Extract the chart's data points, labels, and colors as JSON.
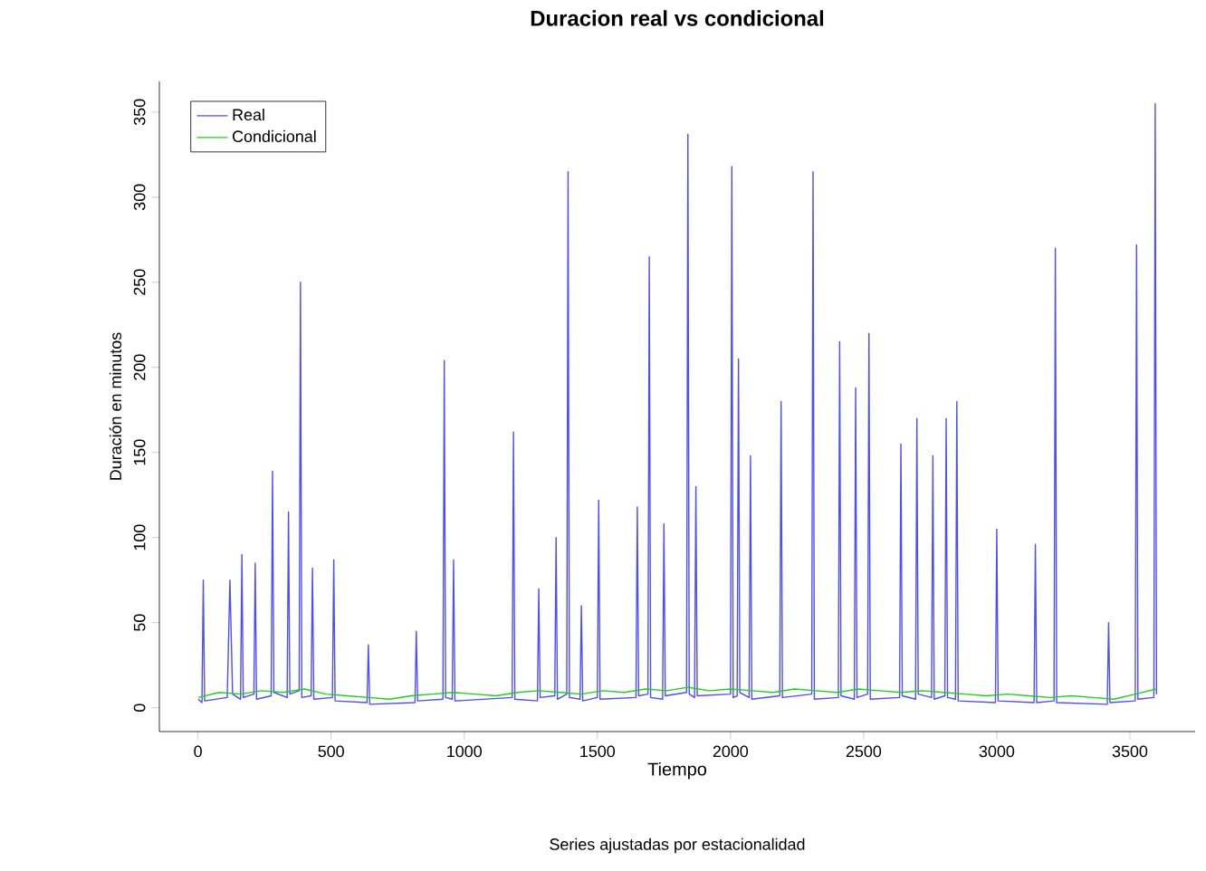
{
  "chart_data": {
    "type": "line",
    "title": "Duracion real vs condicional",
    "subtitle": "Series ajustadas por estacionalidad",
    "xlabel": "Tiempo",
    "ylabel": "Duración en minutos",
    "xlim": [
      -145,
      3745
    ],
    "ylim": [
      -14,
      368
    ],
    "xticks": [
      0,
      500,
      1000,
      1500,
      2000,
      2500,
      3000,
      3500
    ],
    "yticks": [
      0,
      50,
      100,
      150,
      200,
      250,
      300,
      350
    ],
    "legend": "top left",
    "grid": false,
    "series": [
      {
        "name": "Real",
        "color": "#4d4dff",
        "x": [
          1,
          15,
          20,
          25,
          110,
          120,
          130,
          160,
          165,
          170,
          210,
          215,
          220,
          275,
          280,
          285,
          335,
          340,
          345,
          380,
          385,
          390,
          425,
          430,
          435,
          505,
          510,
          515,
          635,
          640,
          645,
          815,
          820,
          825,
          920,
          925,
          930,
          955,
          960,
          965,
          1180,
          1185,
          1190,
          1275,
          1280,
          1285,
          1340,
          1345,
          1350,
          1385,
          1390,
          1395,
          1435,
          1440,
          1445,
          1500,
          1505,
          1510,
          1645,
          1650,
          1655,
          1690,
          1695,
          1700,
          1745,
          1750,
          1755,
          1835,
          1840,
          1845,
          1865,
          1870,
          1875,
          2000,
          2005,
          2010,
          2025,
          2030,
          2035,
          2070,
          2075,
          2080,
          2185,
          2190,
          2195,
          2305,
          2310,
          2315,
          2405,
          2410,
          2415,
          2465,
          2470,
          2475,
          2515,
          2520,
          2525,
          2635,
          2640,
          2645,
          2695,
          2700,
          2705,
          2755,
          2760,
          2765,
          2805,
          2810,
          2815,
          2845,
          2850,
          2855,
          2995,
          3000,
          3005,
          3140,
          3145,
          3150,
          3215,
          3220,
          3225,
          3415,
          3420,
          3425,
          3520,
          3525,
          3530,
          3590,
          3595,
          3600
        ],
        "values": [
          5,
          3,
          75,
          4,
          6,
          75,
          8,
          5,
          90,
          6,
          8,
          85,
          5,
          7,
          139,
          9,
          6,
          115,
          8,
          10,
          250,
          6,
          7,
          82,
          5,
          6,
          87,
          4,
          3,
          37,
          2,
          3,
          45,
          4,
          5,
          204,
          6,
          5,
          87,
          4,
          6,
          162,
          5,
          4,
          70,
          6,
          7,
          100,
          5,
          8,
          315,
          6,
          5,
          60,
          4,
          6,
          122,
          5,
          6,
          118,
          7,
          8,
          265,
          6,
          5,
          108,
          7,
          9,
          337,
          8,
          6,
          130,
          7,
          8,
          318,
          6,
          7,
          205,
          9,
          6,
          148,
          5,
          7,
          180,
          6,
          8,
          315,
          5,
          6,
          215,
          7,
          5,
          188,
          6,
          8,
          220,
          5,
          6,
          155,
          7,
          5,
          170,
          8,
          6,
          148,
          5,
          7,
          170,
          6,
          5,
          180,
          4,
          3,
          105,
          4,
          3,
          96,
          3,
          4,
          270,
          3,
          2,
          50,
          3,
          4,
          272,
          5,
          6,
          355,
          8
        ]
      },
      {
        "name": "Condicional",
        "color": "#22cc22",
        "x": [
          1,
          80,
          160,
          240,
          320,
          400,
          480,
          560,
          640,
          720,
          800,
          880,
          960,
          1040,
          1120,
          1200,
          1280,
          1360,
          1440,
          1520,
          1600,
          1680,
          1760,
          1840,
          1920,
          2000,
          2080,
          2160,
          2240,
          2320,
          2400,
          2480,
          2560,
          2640,
          2720,
          2800,
          2880,
          2960,
          3040,
          3120,
          3200,
          3280,
          3360,
          3440,
          3520,
          3600
        ],
        "values": [
          6,
          9,
          8,
          10,
          9,
          11,
          8,
          7,
          6,
          5,
          7,
          8,
          9,
          8,
          7,
          9,
          10,
          9,
          8,
          10,
          9,
          11,
          10,
          12,
          10,
          11,
          10,
          9,
          11,
          10,
          9,
          11,
          10,
          9,
          10,
          9,
          8,
          7,
          8,
          7,
          6,
          7,
          6,
          5,
          8,
          11
        ]
      }
    ]
  }
}
